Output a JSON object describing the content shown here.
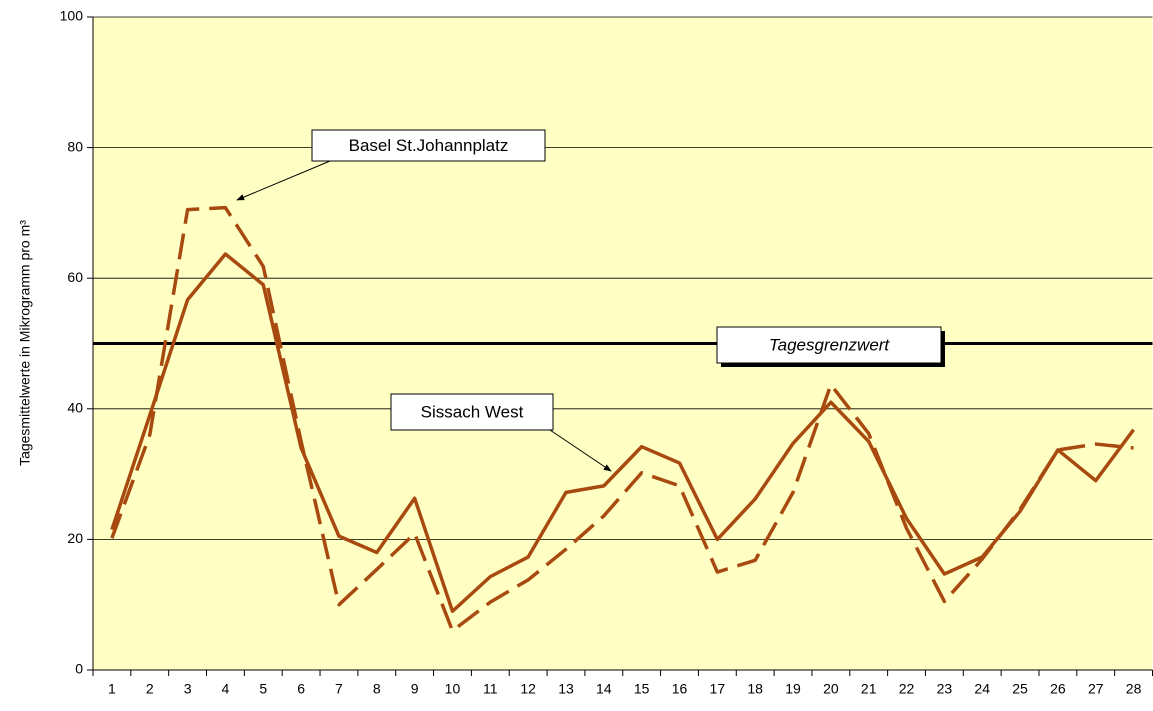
{
  "chart_data": {
    "type": "line",
    "y_label": "Tagesmittelwerte in Mikrogramm pro m³",
    "categories": [
      "1",
      "2",
      "3",
      "4",
      "5",
      "6",
      "7",
      "8",
      "9",
      "10",
      "11",
      "12",
      "13",
      "14",
      "15",
      "16",
      "17",
      "18",
      "19",
      "20",
      "21",
      "22",
      "23",
      "24",
      "25",
      "26",
      "27",
      "28"
    ],
    "series": [
      {
        "name": "Sissach West",
        "color": "#a84a10",
        "style": "solid",
        "values": [
          21.5,
          39,
          56.7,
          63.7,
          59,
          34,
          20.5,
          18,
          26.3,
          9,
          14.3,
          17.3,
          27.2,
          28.2,
          34.2,
          31.7,
          20,
          26.2,
          34.7,
          41,
          35,
          23.2,
          14.7,
          17.3,
          24.3,
          33.7,
          29,
          36.8
        ]
      },
      {
        "name": "Basel St.Johannplatz",
        "color": "#a84a10",
        "style": "dashed",
        "values": [
          20.2,
          36,
          70.5,
          70.8,
          61.8,
          35,
          10,
          15.4,
          20.9,
          6,
          10.4,
          13.8,
          18.5,
          23.6,
          30.2,
          28.2,
          15,
          16.8,
          27.2,
          43.7,
          36.2,
          21.7,
          10.5,
          17,
          24.6,
          33.7,
          34.6,
          34
        ]
      }
    ],
    "reference_line": {
      "value": 50,
      "label": "Tagesgrenzwert"
    },
    "ylim": [
      0,
      100
    ],
    "yticks": [
      0,
      20,
      40,
      60,
      80,
      100
    ],
    "grid": true,
    "plot_background": "#ffffc4"
  }
}
